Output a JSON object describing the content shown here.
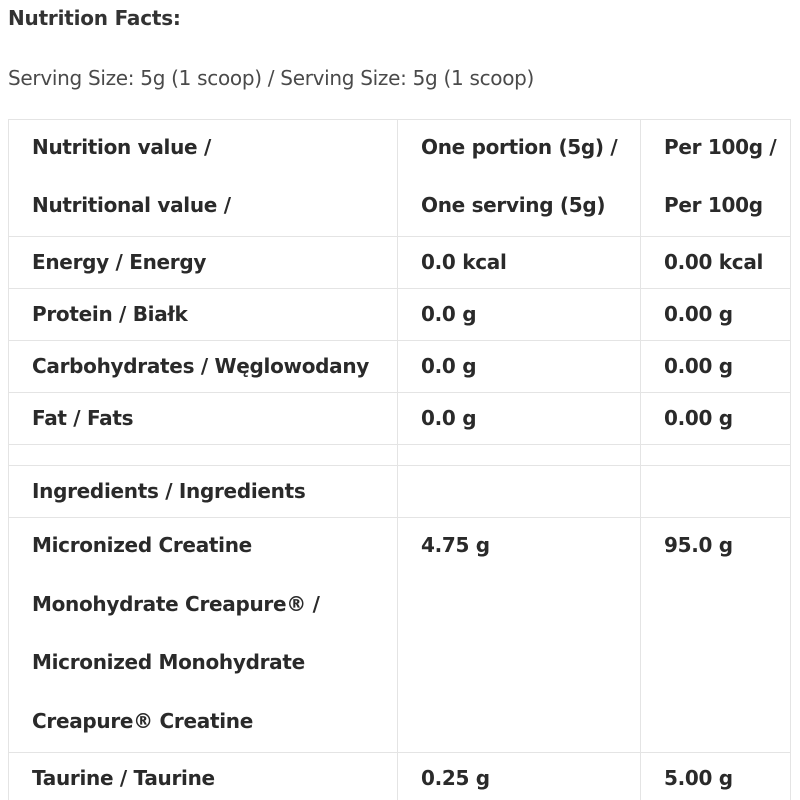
{
  "heading": "Nutrition Facts:",
  "serving_size": "Serving Size: 5g (1 scoop) / Serving Size: 5g (1 scoop)",
  "table": {
    "header": {
      "col1": [
        "Nutrition value /",
        "Nutritional value /"
      ],
      "col2": [
        "One portion (5g) /",
        "One serving (5g)"
      ],
      "col3": [
        "Per 100g /",
        "Per 100g"
      ]
    },
    "nutrients": [
      {
        "name": "Energy / Energy",
        "portion": "0.0 kcal",
        "per100": "0.00 kcal"
      },
      {
        "name": "Protein / Białk",
        "portion": "0.0 g",
        "per100": "0.00 g"
      },
      {
        "name": "Carbohydrates / Węglowodany",
        "portion": "0.0 g",
        "per100": "0.00 g"
      },
      {
        "name": "Fat / Fats",
        "portion": "0.0 g",
        "per100": "0.00 g"
      }
    ],
    "ingredients_label": "Ingredients / Ingredients",
    "creatine": {
      "name_lines": [
        "Micronized Creatine",
        "Monohydrate Creapure® /",
        "Micronized Monohydrate",
        "Creapure® Creatine"
      ],
      "portion": "4.75 g",
      "per100": "95.0 g"
    },
    "taurine": {
      "name": "Taurine / Taurine",
      "portion": "0.25 g",
      "per100": "5.00 g"
    }
  }
}
